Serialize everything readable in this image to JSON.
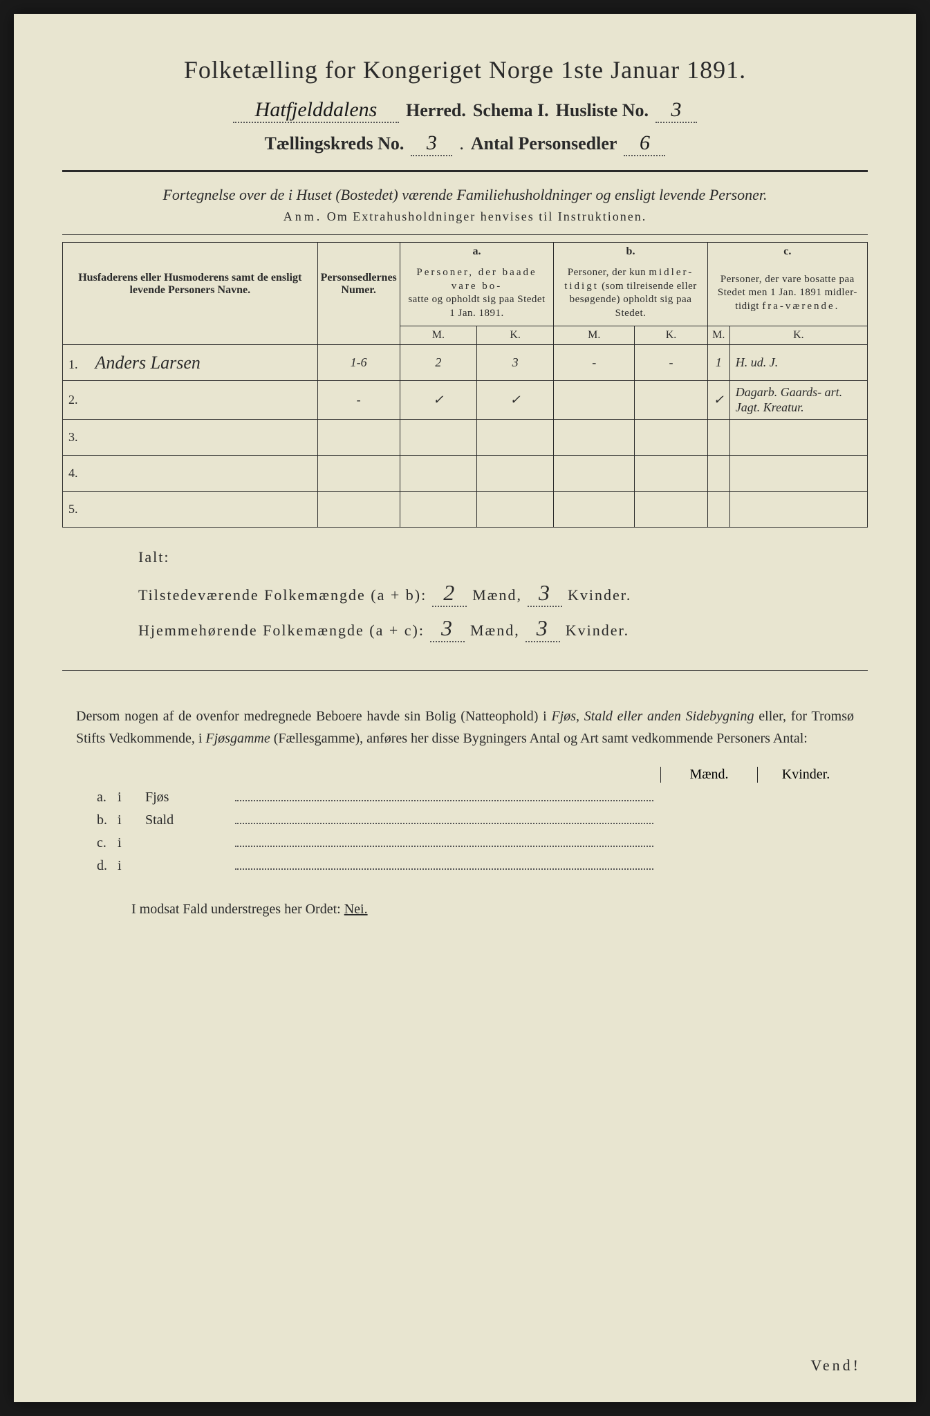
{
  "title": "Folketælling for Kongeriget Norge 1ste Januar 1891.",
  "header": {
    "herred_value": "Hatfjelddalens",
    "herred_label": "Herred.",
    "schema_label": "Schema I.",
    "husliste_label": "Husliste No.",
    "husliste_value": "3",
    "kreds_label": "Tællingskreds No.",
    "kreds_value": "3",
    "antal_label": "Antal Personsedler",
    "antal_value": "6"
  },
  "subtitle": "Fortegnelse over de i Huset (Bostedet) værende Familiehusholdninger og ensligt levende Personer.",
  "anm_label": "Anm.",
  "anm_text": "Om Extrahusholdninger henvises til Instruktionen.",
  "table": {
    "col_name": "Husfaderens eller Husmoderens samt de ensligt levende Personers Navne.",
    "col_num": "Personsedlernes Numer.",
    "col_a_label": "a.",
    "col_a_desc": "Personer, der baade vare bosatte og opholdt sig paa Stedet 1 Jan. 1891.",
    "col_b_label": "b.",
    "col_b_desc": "Personer, der kun midlertidigt (som tilreisende eller besøgende) opholdt sig paa Stedet.",
    "col_c_label": "c.",
    "col_c_desc": "Personer, der vare bosatte paa Stedet men 1 Jan. 1891 midlertidigt fraværende.",
    "m_label": "M.",
    "k_label": "K.",
    "rows": [
      {
        "num": "1.",
        "name": "Anders Larsen",
        "sedler": "1-6",
        "a_m": "2",
        "a_k": "3",
        "b_m": "-",
        "b_k": "-",
        "c_m": "1",
        "c_k": "H. ud. J."
      },
      {
        "num": "2.",
        "name": "",
        "sedler": "-",
        "a_m": "✓",
        "a_k": "✓",
        "b_m": "",
        "b_k": "",
        "c_m": "✓",
        "c_k": "Dagarb. Gaards- art. Jagt. Kreatur."
      },
      {
        "num": "3.",
        "name": "",
        "sedler": "",
        "a_m": "",
        "a_k": "",
        "b_m": "",
        "b_k": "",
        "c_m": "",
        "c_k": ""
      },
      {
        "num": "4.",
        "name": "",
        "sedler": "",
        "a_m": "",
        "a_k": "",
        "b_m": "",
        "b_k": "",
        "c_m": "",
        "c_k": ""
      },
      {
        "num": "5.",
        "name": "",
        "sedler": "",
        "a_m": "",
        "a_k": "",
        "b_m": "",
        "b_k": "",
        "c_m": "",
        "c_k": ""
      }
    ]
  },
  "totals": {
    "ialt_label": "Ialt:",
    "tilstede_label": "Tilstedeværende Folkemængde (a + b):",
    "tilstede_m": "2",
    "tilstede_k": "3",
    "hjemme_label": "Hjemmehørende Folkemængde (a + c):",
    "hjemme_m": "3",
    "hjemme_k": "3",
    "maend_label": "Mænd,",
    "kvinder_label": "Kvinder."
  },
  "body_text": "Dersom nogen af de ovenfor medregnede Beboere havde sin Bolig (Natteophold) i Fjøs, Stald eller anden Sidebygning eller, for Tromsø Stifts Vedkommende, i Fjøsgamme (Fællesgamme), anføres her disse Bygningers Antal og Art samt vedkommende Personers Antal:",
  "buildings": {
    "maend_header": "Mænd.",
    "kvinder_header": "Kvinder.",
    "rows": [
      {
        "label": "a.",
        "i": "i",
        "name": "Fjøs"
      },
      {
        "label": "b.",
        "i": "i",
        "name": "Stald"
      },
      {
        "label": "c.",
        "i": "i",
        "name": ""
      },
      {
        "label": "d.",
        "i": "i",
        "name": ""
      }
    ]
  },
  "final_line_pre": "I modsat Fald understreges her Ordet: ",
  "final_line_nei": "Nei.",
  "vendi": "Vend!"
}
